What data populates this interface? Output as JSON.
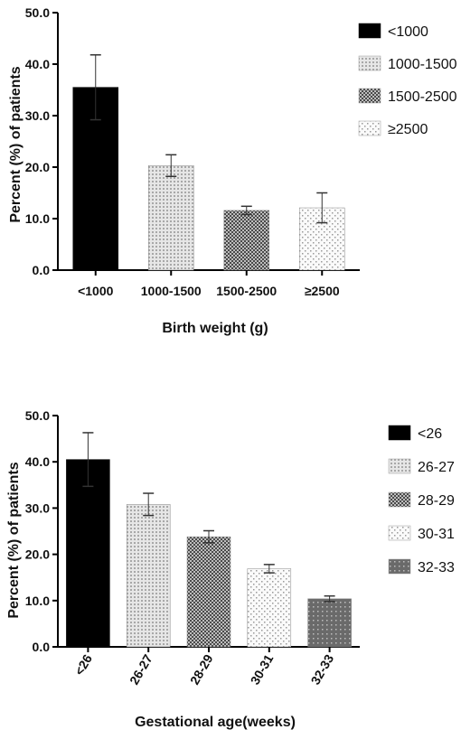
{
  "chart_data": [
    {
      "type": "bar",
      "title": "",
      "ylabel": "Percent (%) of patients",
      "xlabel": "Birth weight (g)",
      "categories": [
        "<1000",
        "1000-1500",
        "1500-2500",
        "≥2500"
      ],
      "values": [
        35.5,
        20.3,
        11.6,
        12.1
      ],
      "errors": [
        6.3,
        2.1,
        0.8,
        2.9
      ],
      "ylim": [
        0,
        50
      ],
      "yticks": [
        "0.0",
        "10.0",
        "20.0",
        "30.0",
        "40.0",
        "50.0"
      ],
      "ytick_values": [
        0,
        10,
        20,
        30,
        40,
        50
      ],
      "legend": [
        "<1000",
        "1000-1500",
        "1500-2500",
        "≥2500"
      ],
      "legend_position": "right",
      "grid": false,
      "colors": [
        "#000000",
        "#cfcfcf",
        "#7a7a7a",
        "#f2f2f2"
      ],
      "patterns": [
        "solid",
        "light-dots",
        "checker",
        "sparse-dots"
      ],
      "tick_rotation": 0
    },
    {
      "type": "bar",
      "title": "",
      "ylabel": "Percent (%) of patients",
      "xlabel": "Gestational age(weeks)",
      "categories": [
        "<26",
        "26-27",
        "28-29",
        "30-31",
        "32-33"
      ],
      "values": [
        40.5,
        30.8,
        23.8,
        16.9,
        10.4
      ],
      "errors": [
        5.8,
        2.4,
        1.3,
        0.9,
        0.6
      ],
      "ylim": [
        0,
        50
      ],
      "yticks": [
        "0.0",
        "10.0",
        "20.0",
        "30.0",
        "40.0",
        "50.0"
      ],
      "ytick_values": [
        0,
        10,
        20,
        30,
        40,
        50
      ],
      "legend": [
        "<26",
        "26-27",
        "28-29",
        "30-31",
        "32-33"
      ],
      "legend_position": "right",
      "grid": false,
      "colors": [
        "#000000",
        "#cfcfcf",
        "#7a7a7a",
        "#f2f2f2",
        "#6e6e6e"
      ],
      "patterns": [
        "solid",
        "light-dots",
        "checker",
        "sparse-dots",
        "dark-dots"
      ],
      "tick_rotation": -60
    }
  ]
}
